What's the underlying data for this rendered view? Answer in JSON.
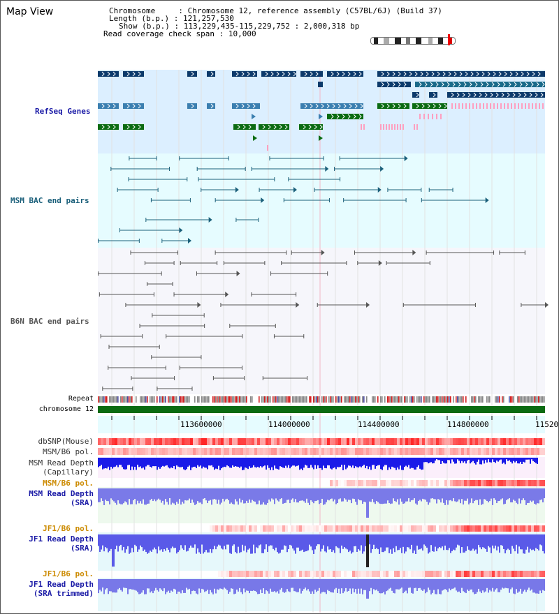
{
  "title": "Map View",
  "header": {
    "chromosome_label": "Chromosome",
    "chromosome_value": "Chromosome 12, reference assembly (C57BL/6J) (Build 37)",
    "length_label": "Length (b.p.)",
    "length_value": "121,257,530",
    "show_label": "Show (b.p.)",
    "show_value": "113,229,435-115,229,752 : 2,000,318 bp",
    "coverage_label": "Read coverage check span",
    "coverage_value": "10,000"
  },
  "tracks": {
    "refseq": {
      "label": "RefSeq Genes",
      "color": "#1a1aa6"
    },
    "msm_bac": {
      "label": "MSM BAC end pairs",
      "color": "#1a5f7a"
    },
    "b6n_bac": {
      "label": "B6N BAC end pairs",
      "color": "#555555"
    },
    "repeat": {
      "label": "Repeat"
    },
    "chromosome": {
      "label": "chromosome 12"
    },
    "dbsnp": {
      "label": "dbSNP(Mouse)"
    },
    "msm_b6_pol_1": {
      "label": "MSM/B6 pol."
    },
    "msm_depth_cap": {
      "label": "MSM Read Depth\n(Capillary)"
    },
    "msm_b6_pol_2": {
      "label": "MSM/B6 pol."
    },
    "msm_depth_sra": {
      "label": "MSM Read Depth\n(SRA)"
    },
    "jf1_b6_pol_1": {
      "label": "JF1/B6 pol."
    },
    "jf1_depth_sra": {
      "label": "JF1 Read Depth\n(SRA)"
    },
    "jf1_b6_pol_2": {
      "label": "JF1/B6 pol."
    },
    "jf1_depth_trim": {
      "label": "JF1 Read Depth\n(SRA trimmed)"
    }
  },
  "axis": {
    "ticks": [
      "113600000",
      "114000000",
      "114400000",
      "114800000",
      "11520"
    ]
  },
  "colors": {
    "refseq_bg": "#dcefff",
    "msm_bg": "#e6fcff",
    "b6n_bg": "#f6f6fb",
    "gene_dark": "#0c3a6b",
    "gene_mid": "#3b7fb0",
    "gene_green": "#0b6b12",
    "gene_pink": "#ff9fc0",
    "orange_label": "#cc8a00",
    "blue_label": "#1a1aa6"
  }
}
